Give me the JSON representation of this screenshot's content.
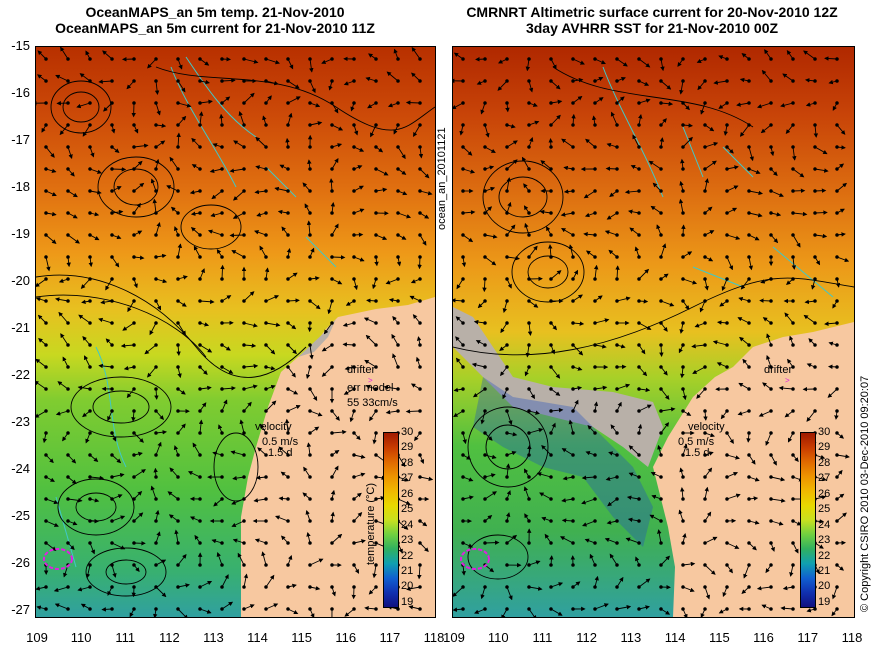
{
  "left_panel": {
    "title_line1": "OceanMAPS_an 5m temp. 21-Nov-2010",
    "title_line2": "OceanMAPS_an 5m current for 21-Nov-2010 11Z",
    "drifter_label": "drifter",
    "err_model_label": "err model",
    "err_model_values": "55 33cm/s",
    "velocity_label": "velocity",
    "velocity_scale": "0.5 m/s",
    "velocity_days": "1.5 d",
    "side_label": "ocean_an_20101121"
  },
  "right_panel": {
    "title_line1": "CMRNRT Altimetric surface current for 20-Nov-2010 12Z",
    "title_line2": "3day AVHRR SST for 21-Nov-2010 00Z",
    "drifter_label": "drifter",
    "velocity_label": "velocity",
    "velocity_scale": "0.5 m/s",
    "velocity_days": "1.5 d",
    "side_label": "© Copyright CSIRO 2010    03-Dec-2010 09:20:07"
  },
  "axes": {
    "y_ticks": [
      "-15",
      "-16",
      "-17",
      "-18",
      "-19",
      "-20",
      "-21",
      "-22",
      "-23",
      "-24",
      "-25",
      "-26",
      "-27"
    ],
    "x_ticks_left": [
      "109",
      "110",
      "111",
      "112",
      "113",
      "114",
      "115",
      "116",
      "117",
      "118"
    ],
    "x_ticks_right": [
      "109",
      "110",
      "111",
      "112",
      "113",
      "114",
      "115",
      "116",
      "117",
      "118"
    ]
  },
  "colorbar": {
    "title": "temperature (°C)",
    "labels": [
      "30",
      "29",
      "28",
      "27",
      "26",
      "25",
      "24",
      "23",
      "22",
      "21",
      "20",
      "19"
    ],
    "colors": [
      "#a01a00",
      "#c83c00",
      "#e06a00",
      "#ee9400",
      "#f0b800",
      "#e8d800",
      "#c8e020",
      "#70d040",
      "#30b060",
      "#10a0b0",
      "#1060d0",
      "#1030b0",
      "#101080"
    ]
  },
  "colors": {
    "land": "#f7c8a0",
    "coast_grey": "#b8b0a8",
    "drifter": "#e020e0",
    "coastline": "#40c8c8"
  }
}
